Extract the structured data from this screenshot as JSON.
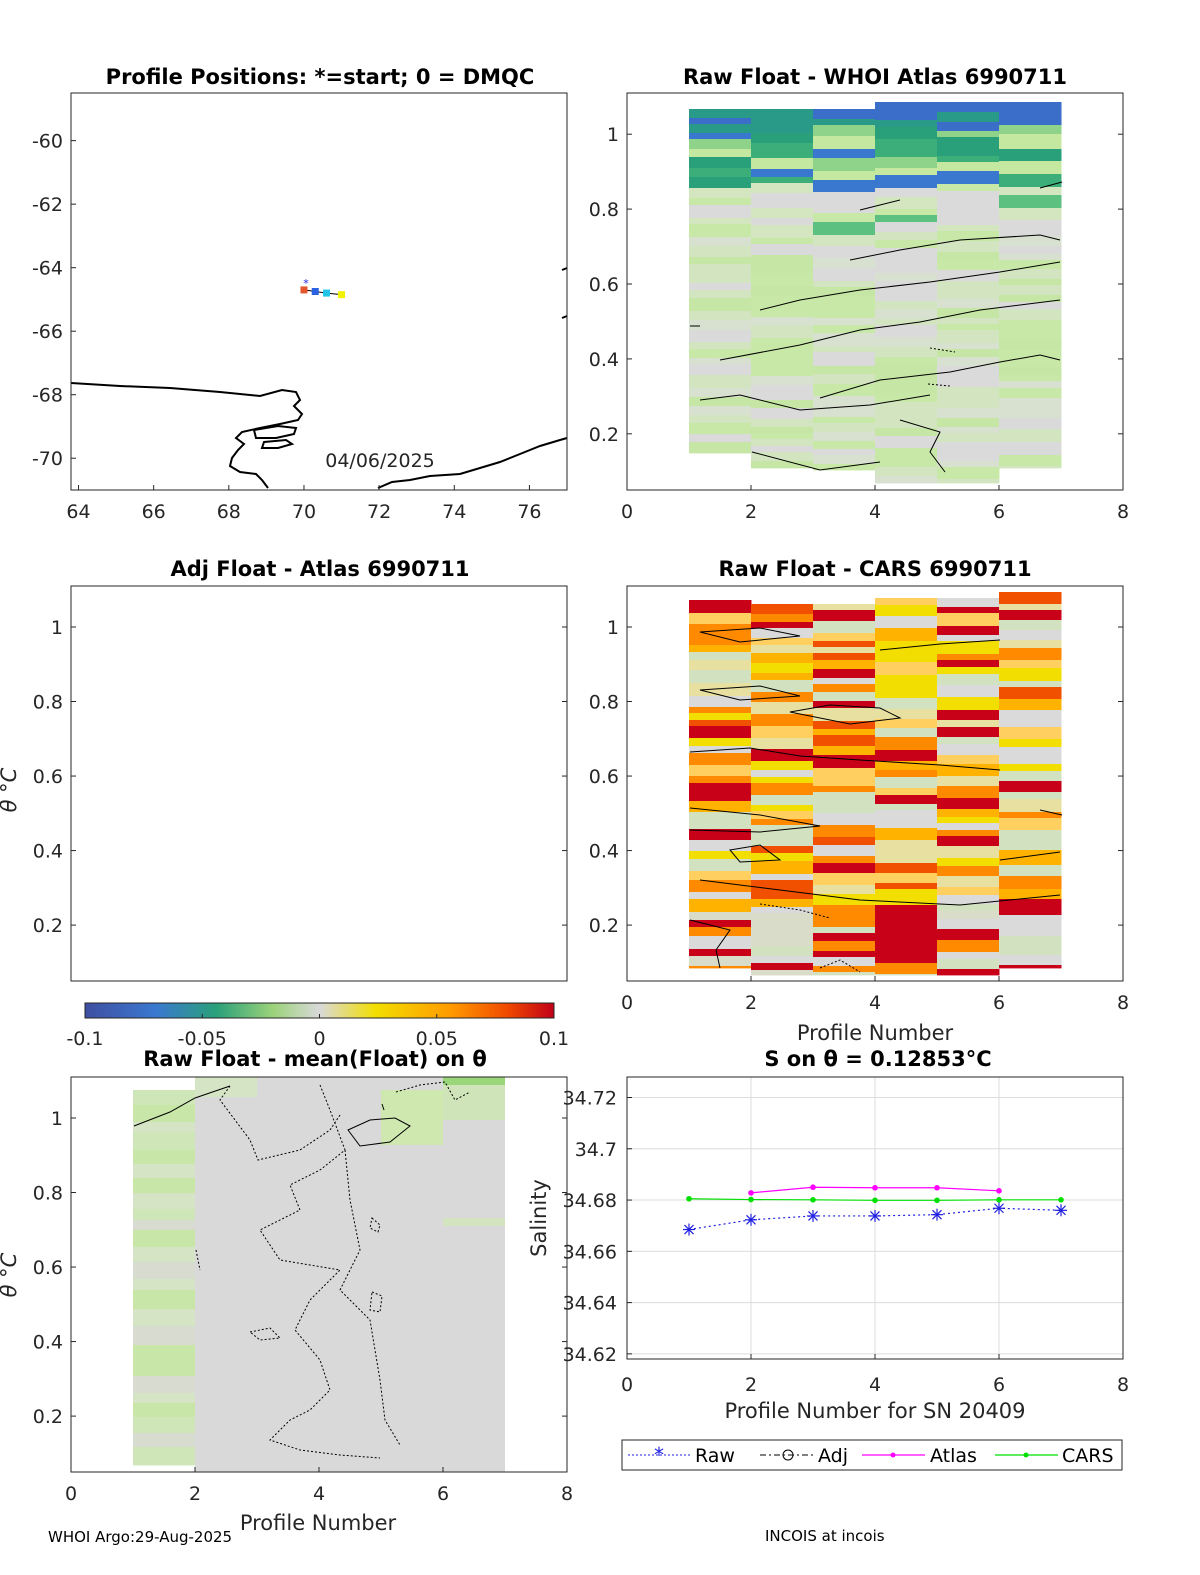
{
  "colors": {
    "raw": "#2020e0",
    "adj": "#000000",
    "atlas": "#ff00ff",
    "cars": "#00e000",
    "coast": "#000000",
    "axis": "#262626",
    "grid": "#dcdcdc"
  },
  "footer": {
    "left": "WHOI Argo:29-Aug-2025",
    "right": "INCOIS at incois"
  },
  "panels": {
    "map": {
      "title": "Profile Positions: *=start; 0 = DMQC",
      "date_label": "04/06/2025",
      "xticks": [
        "64",
        "66",
        "68",
        "70",
        "72",
        "74",
        "76"
      ],
      "yticks": [
        "-60",
        "-62",
        "-64",
        "-66",
        "-68",
        "-70"
      ],
      "xlim": [
        63.8,
        77
      ],
      "ylim": [
        -71,
        -58.5
      ],
      "track_lon": [
        70.0,
        70.3,
        70.6,
        71.0
      ],
      "track_lat": [
        -64.7,
        -64.75,
        -64.8,
        -64.85
      ],
      "track_colors": [
        "#e4572e",
        "#2a62e0",
        "#21c4e6",
        "#f2f200"
      ]
    },
    "raw_atlas": {
      "title": "Raw Float - WHOI Atlas  6990711",
      "xticks": [
        "0",
        "2",
        "4",
        "6",
        "8"
      ],
      "yticks": [
        "0.2",
        "0.4",
        "0.6",
        "0.8",
        "1"
      ]
    },
    "adj_atlas": {
      "title": "Adj Float - Atlas  6990711",
      "ylabel": "θ °C",
      "yticks": [
        "0.2",
        "0.4",
        "0.6",
        "0.8",
        "1"
      ]
    },
    "raw_cars": {
      "title": "Raw Float - CARS  6990711",
      "xlabel": "Profile Number",
      "xticks": [
        "0",
        "2",
        "4",
        "6",
        "8"
      ],
      "yticks": [
        "0.2",
        "0.4",
        "0.6",
        "0.8",
        "1"
      ]
    },
    "colorbar": {
      "ticks": [
        "-0.1",
        "-0.05",
        "0",
        "0.05",
        "0.1"
      ],
      "range": [
        -0.1,
        0.1
      ]
    },
    "raw_mean": {
      "title": "Raw Float - mean(Float) on θ",
      "ylabel": "θ °C",
      "xlabel": "Profile Number",
      "xticks": [
        "0",
        "2",
        "4",
        "6",
        "8"
      ],
      "yticks": [
        "0.2",
        "0.4",
        "0.6",
        "0.8",
        "1"
      ]
    }
  },
  "chart_data": [
    {
      "type": "line",
      "title": "S on θ = 0.12853°C",
      "xlabel": "Profile Number for SN 20409",
      "ylabel": "Salinity",
      "xlim": [
        0,
        8
      ],
      "ylim": [
        34.618,
        34.728
      ],
      "xticks": [
        "0",
        "2",
        "4",
        "6",
        "8"
      ],
      "yticks": [
        "34.62",
        "34.64",
        "34.66",
        "34.68",
        "34.7",
        "34.72"
      ],
      "grid": true,
      "legend_position": "bottom",
      "series": [
        {
          "name": "Raw",
          "x": [
            1,
            2,
            3,
            4,
            5,
            6,
            7
          ],
          "values": [
            34.6685,
            34.6723,
            34.6738,
            34.6738,
            34.6743,
            34.6768,
            34.676
          ]
        },
        {
          "name": "Adj",
          "x": [],
          "values": []
        },
        {
          "name": "Atlas",
          "x": [
            2,
            3,
            4,
            5,
            6
          ],
          "values": [
            34.6828,
            34.685,
            34.6848,
            34.6848,
            34.6836
          ]
        },
        {
          "name": "CARS",
          "x": [
            1,
            2,
            3,
            4,
            5,
            6,
            7
          ],
          "values": [
            34.6805,
            34.6802,
            34.6801,
            34.6799,
            34.6799,
            34.6801,
            34.6801
          ]
        }
      ]
    }
  ]
}
